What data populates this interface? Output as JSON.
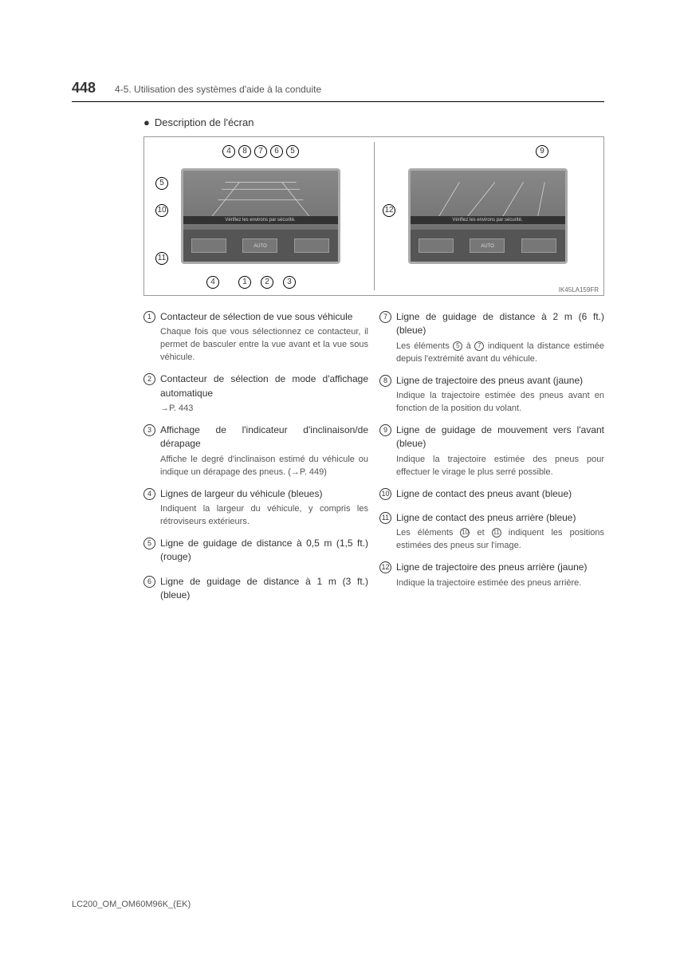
{
  "page_number": "448",
  "section_path": "4-5. Utilisation des systèmes d'aide à la conduite",
  "subheading": "Description de l'écran",
  "figure": {
    "band_text": "Vérifiez les environs par sécurité.",
    "btn_auto": "AUTO",
    "code": "IK45LA159FR",
    "callouts_left_top": [
      "4",
      "8",
      "7",
      "6",
      "5"
    ],
    "callouts_left_side": [
      "5",
      "10",
      "11"
    ],
    "callouts_left_bottom": [
      "4",
      "1",
      "2",
      "3"
    ],
    "callouts_right": [
      "9",
      "12"
    ]
  },
  "left_items": [
    {
      "n": "1",
      "title": "Contacteur de sélection de vue sous véhicule",
      "desc": "Chaque fois que vous sélectionnez ce contacteur, il permet de basculer entre la vue avant et la vue sous véhicule."
    },
    {
      "n": "2",
      "title": "Contacteur de sélection de mode d'affichage automatique",
      "desc": "→P. 443"
    },
    {
      "n": "3",
      "title": "Affichage de l'indicateur d'inclinaison/de dérapage",
      "desc": "Affiche le degré d'inclinaison estimé du véhicule ou indique un dérapage des pneus. (→P. 449)"
    },
    {
      "n": "4",
      "title": "Lignes de largeur du véhicule (bleues)",
      "desc": "Indiquent la largeur du véhicule, y compris les rétroviseurs extérieurs."
    },
    {
      "n": "5",
      "title": "Ligne de guidage de distance à 0,5 m (1,5 ft.) (rouge)",
      "desc": ""
    },
    {
      "n": "6",
      "title": "Ligne de guidage de distance à 1 m (3 ft.) (bleue)",
      "desc": ""
    }
  ],
  "right_items": [
    {
      "n": "7",
      "title": "Ligne de guidage de distance à 2 m (6 ft.) (bleue)",
      "desc_html": "Les éléments <span class='inline-circ'>5</span> à <span class='inline-circ'>7</span> indiquent la distance estimée depuis l'extrémité avant du véhicule."
    },
    {
      "n": "8",
      "title": "Ligne de trajectoire des pneus avant (jaune)",
      "desc": "Indique la trajectoire estimée des pneus avant en fonction de la position du volant."
    },
    {
      "n": "9",
      "title": "Ligne de guidage de mouvement vers l'avant (bleue)",
      "desc": "Indique la trajectoire estimée des pneus pour effectuer le virage le plus serré possible."
    },
    {
      "n": "10",
      "title": "Ligne de contact des pneus avant (bleue)",
      "desc": ""
    },
    {
      "n": "11",
      "title": "Ligne de contact des pneus arrière (bleue)",
      "desc_html": "Les éléments <span class='inline-circ'>10</span> et <span class='inline-circ'>11</span> indiquent les positions estimées des pneus sur l'image."
    },
    {
      "n": "12",
      "title": "Ligne de trajectoire des pneus arrière (jaune)",
      "desc": "Indique la trajectoire estimée des pneus arrière."
    }
  ],
  "footer_code": "LC200_OM_OM60M96K_(EK)"
}
